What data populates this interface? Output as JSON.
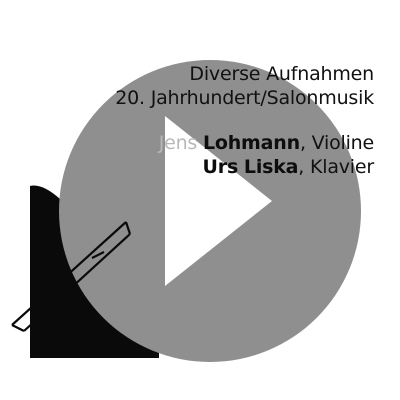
{
  "cover": {
    "line1": "Diverse Aufnahmen",
    "line2": "20. Jahrhundert/Salonmusik",
    "performer1": {
      "first": "Jens",
      "last": "Lohmann",
      "role": "Violine"
    },
    "performer2": {
      "first": "Urs",
      "last": "Liska",
      "role": "Klavier"
    }
  },
  "player": {
    "button_icon": "play-icon"
  },
  "colors": {
    "play_circle": "#8f8f8f",
    "play_triangle": "#ffffff",
    "piano": "#0a0a0a",
    "first_name": "#b8b8b8",
    "text": "#111111"
  }
}
